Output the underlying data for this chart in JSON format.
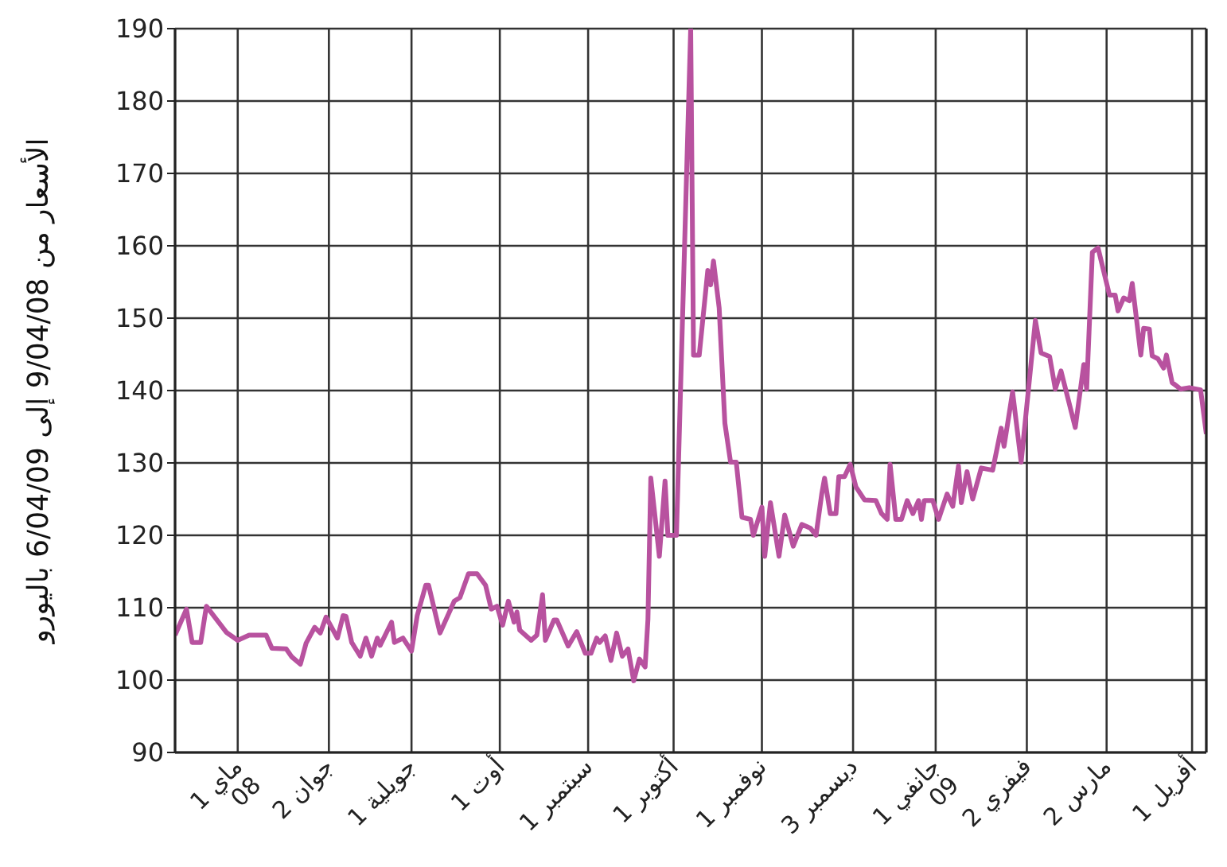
{
  "chart_data": {
    "type": "line",
    "ylabel": "الأسعار من 9/04/08 إلى 6/04/09 باليورو",
    "x": [
      "2008-04-09",
      "2008-04-13",
      "2008-04-15",
      "2008-04-18",
      "2008-04-20",
      "2008-04-27",
      "2008-05-01",
      "2008-05-05",
      "2008-05-11",
      "2008-05-13",
      "2008-05-18",
      "2008-05-20",
      "2008-05-23",
      "2008-05-25",
      "2008-05-28",
      "2008-05-30",
      "2008-06-01",
      "2008-06-05",
      "2008-06-07",
      "2008-06-08",
      "2008-06-10",
      "2008-06-13",
      "2008-06-15",
      "2008-06-17",
      "2008-06-19",
      "2008-06-20",
      "2008-06-24",
      "2008-06-25",
      "2008-06-28",
      "2008-07-01",
      "2008-07-03",
      "2008-07-06",
      "2008-07-07",
      "2008-07-09",
      "2008-07-11",
      "2008-07-16",
      "2008-07-18",
      "2008-07-21",
      "2008-07-24",
      "2008-07-27",
      "2008-07-29",
      "2008-07-31",
      "2008-08-02",
      "2008-08-04",
      "2008-08-06",
      "2008-08-07",
      "2008-08-08",
      "2008-08-12",
      "2008-08-14",
      "2008-08-16",
      "2008-08-17",
      "2008-08-20",
      "2008-08-21",
      "2008-08-25",
      "2008-08-28",
      "2008-08-31",
      "2008-09-02",
      "2008-09-04",
      "2008-09-05",
      "2008-09-07",
      "2008-09-09",
      "2008-09-11",
      "2008-09-13",
      "2008-09-15",
      "2008-09-17",
      "2008-09-19",
      "2008-09-21",
      "2008-09-22",
      "2008-09-23",
      "2008-09-26",
      "2008-09-28",
      "2008-09-29",
      "2008-10-02",
      "2008-10-07",
      "2008-10-08",
      "2008-10-10",
      "2008-10-13",
      "2008-10-14",
      "2008-10-15",
      "2008-10-17",
      "2008-10-19",
      "2008-10-21",
      "2008-10-23",
      "2008-10-25",
      "2008-10-28",
      "2008-10-29",
      "2008-11-01",
      "2008-11-02",
      "2008-11-04",
      "2008-11-07",
      "2008-11-09",
      "2008-11-12",
      "2008-11-15",
      "2008-11-18",
      "2008-11-20",
      "2008-11-22",
      "2008-11-23",
      "2008-11-25",
      "2008-11-27",
      "2008-11-28",
      "2008-11-30",
      "2008-12-02",
      "2008-12-04",
      "2008-12-07",
      "2008-12-11",
      "2008-12-13",
      "2008-12-15",
      "2008-12-16",
      "2008-12-18",
      "2008-12-20",
      "2008-12-22",
      "2008-12-24",
      "2008-12-26",
      "2008-12-27",
      "2008-12-28",
      "2008-12-31",
      "2009-01-02",
      "2009-01-05",
      "2009-01-07",
      "2009-01-09",
      "2009-01-10",
      "2009-01-12",
      "2009-01-14",
      "2009-01-17",
      "2009-01-21",
      "2009-01-24",
      "2009-01-25",
      "2009-01-28",
      "2009-01-31",
      "2009-02-05",
      "2009-02-07",
      "2009-02-10",
      "2009-02-12",
      "2009-02-14",
      "2009-02-19",
      "2009-02-22",
      "2009-02-23",
      "2009-02-25",
      "2009-02-27",
      "2009-03-03",
      "2009-03-05",
      "2009-03-06",
      "2009-03-08",
      "2009-03-10",
      "2009-03-11",
      "2009-03-14",
      "2009-03-15",
      "2009-03-17",
      "2009-03-18",
      "2009-03-20",
      "2009-03-22",
      "2009-03-23",
      "2009-03-25",
      "2009-03-28",
      "2009-03-31",
      "2009-04-04",
      "2009-04-06"
    ],
    "series": [
      {
        "color": "#b8529f",
        "values": [
          106.2,
          109.8,
          105.2,
          105.2,
          110.2,
          106.6,
          105.5,
          106.2,
          106.2,
          104.4,
          104.3,
          103.2,
          102.2,
          105.1,
          107.3,
          106.5,
          108.7,
          105.8,
          108.9,
          108.8,
          105.2,
          103.3,
          105.8,
          103.3,
          105.8,
          104.8,
          108,
          105.2,
          105.8,
          104,
          108.9,
          113.1,
          113.1,
          109.8,
          106.5,
          110.9,
          111.4,
          114.7,
          114.7,
          113.1,
          109.8,
          110.2,
          107.6,
          110.9,
          108,
          109.4,
          106.9,
          105.5,
          106.2,
          111.8,
          105.5,
          108.3,
          108.3,
          104.7,
          106.7,
          103.7,
          103.7,
          105.8,
          105.2,
          106.1,
          102.7,
          106.5,
          103.3,
          104.3,
          99.9,
          102.9,
          101.8,
          108.4,
          127.9,
          117.1,
          127.5,
          120,
          120,
          190,
          144.9,
          144.9,
          156.6,
          154.6,
          157.9,
          151.4,
          135.5,
          130.1,
          130.1,
          122.5,
          122.2,
          120,
          123.9,
          117.1,
          124.5,
          117.1,
          122.8,
          118.5,
          121.5,
          121,
          120,
          125.7,
          127.9,
          123,
          123,
          128.1,
          128.1,
          129.8,
          126.7,
          124.9,
          124.8,
          123,
          122.2,
          129.8,
          122.2,
          122.2,
          124.8,
          123,
          124.8,
          122.2,
          124.8,
          124.8,
          122.2,
          125.7,
          124,
          129.6,
          124.5,
          128.8,
          125,
          129.3,
          129,
          134.8,
          132.3,
          139.8,
          130.1,
          149.7,
          145.2,
          144.7,
          140.2,
          142.7,
          134.9,
          143.6,
          140.2,
          159.1,
          159.7,
          153.2,
          153.2,
          151,
          152.8,
          152.4,
          154.8,
          144.9,
          148.6,
          148.5,
          144.8,
          144.4,
          143.1,
          144.9,
          141.1,
          140.2,
          140.4,
          140.1,
          134
        ]
      }
    ],
    "xlim": [
      "2008-04-09",
      "2009-04-06"
    ],
    "xticks": [
      {
        "value": "2008-05-01",
        "label": "1 ماي\n08"
      },
      {
        "value": "2008-06-02",
        "label": "2 جوان"
      },
      {
        "value": "2008-07-01",
        "label": "1 جويلية"
      },
      {
        "value": "2008-08-01",
        "label": "1 أوت"
      },
      {
        "value": "2008-09-01",
        "label": "1 سبتمبر"
      },
      {
        "value": "2008-10-01",
        "label": "1 أكتوبر"
      },
      {
        "value": "2008-11-01",
        "label": "1 نوفمبر"
      },
      {
        "value": "2008-12-03",
        "label": "3 ديسمبر"
      },
      {
        "value": "2009-01-01",
        "label": "1 جانفي\n09"
      },
      {
        "value": "2009-02-02",
        "label": "2 فيفري"
      },
      {
        "value": "2009-03-02",
        "label": "2 مارس"
      },
      {
        "value": "2009-04-01",
        "label": "1 أفريل"
      }
    ],
    "ylim": [
      90,
      190
    ],
    "yticks": [
      90,
      100,
      110,
      120,
      130,
      140,
      150,
      160,
      170,
      180,
      190
    ],
    "grid": true
  }
}
